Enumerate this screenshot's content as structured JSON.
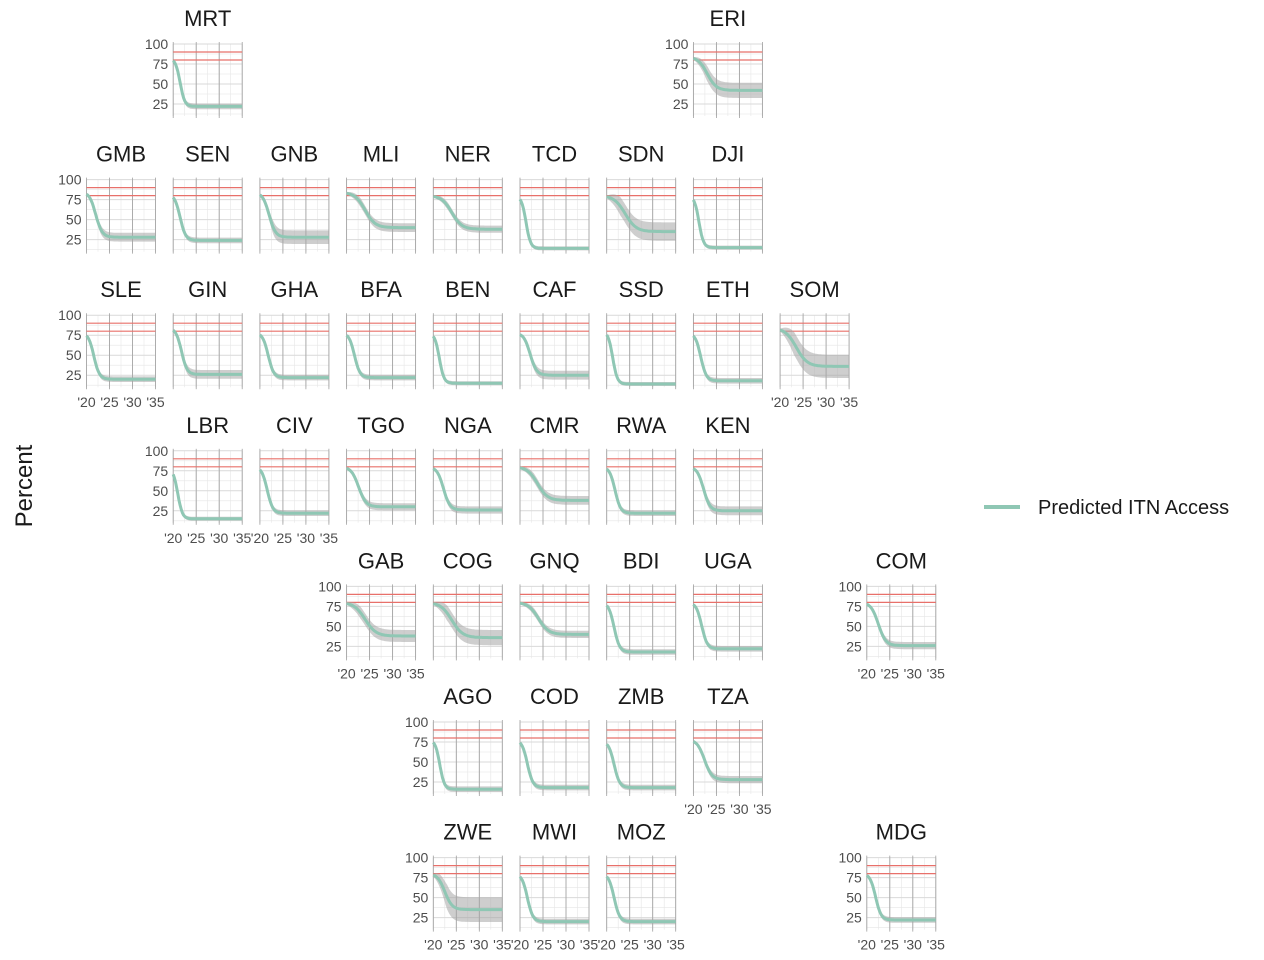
{
  "chart_data": {
    "type": "line",
    "ylabel": "Percent",
    "x_range": [
      2020,
      2035
    ],
    "x_ticks": [
      2020,
      2025,
      2030,
      2035
    ],
    "x_tick_labels": [
      "'20",
      "'25",
      "'30",
      "'35"
    ],
    "y_range": [
      10,
      100
    ],
    "y_ticks": [
      25,
      50,
      75,
      100
    ],
    "y_tick_labels": [
      "25",
      "50",
      "75",
      "100"
    ],
    "reference_lines": [
      80,
      90
    ],
    "grid": true,
    "legend": {
      "position": "right",
      "entries": [
        "Predicted ITN Access"
      ]
    },
    "colors": {
      "line": "#8fc7b4",
      "band": "#a6a6a6",
      "reference": "#e8706a",
      "grid": "#e6e6e6"
    },
    "panels": [
      {
        "id": "MRT",
        "row": 0,
        "col": 1,
        "start": 82,
        "end": 22,
        "mid": 2021.5,
        "width": 0.5,
        "band": 2
      },
      {
        "id": "ERI",
        "row": 0,
        "col": 7,
        "start": 84,
        "end": 42,
        "mid": 2023,
        "width": 1.0,
        "band": 8
      },
      {
        "id": "GMB",
        "row": 1,
        "col": 0,
        "start": 85,
        "end": 28,
        "mid": 2022,
        "width": 0.7,
        "band": 4
      },
      {
        "id": "SEN",
        "row": 1,
        "col": 1,
        "start": 82,
        "end": 24,
        "mid": 2021.5,
        "width": 0.6,
        "band": 2
      },
      {
        "id": "GNB",
        "row": 1,
        "col": 2,
        "start": 84,
        "end": 28,
        "mid": 2022,
        "width": 0.7,
        "band": 7
      },
      {
        "id": "MLI",
        "row": 1,
        "col": 3,
        "start": 84,
        "end": 40,
        "mid": 2024,
        "width": 1.1,
        "band": 4
      },
      {
        "id": "NER",
        "row": 1,
        "col": 4,
        "start": 80,
        "end": 38,
        "mid": 2024,
        "width": 1.1,
        "band": 3
      },
      {
        "id": "TCD",
        "row": 1,
        "col": 5,
        "start": 80,
        "end": 14,
        "mid": 2021.3,
        "width": 0.5,
        "band": 1
      },
      {
        "id": "SDN",
        "row": 1,
        "col": 6,
        "start": 80,
        "end": 35,
        "mid": 2024,
        "width": 1.2,
        "band": 10
      },
      {
        "id": "DJI",
        "row": 1,
        "col": 7,
        "start": 80,
        "end": 15,
        "mid": 2021.2,
        "width": 0.5,
        "band": 1
      },
      {
        "id": "SLE",
        "row": 2,
        "col": 0,
        "start": 78,
        "end": 20,
        "mid": 2021.6,
        "width": 0.6,
        "band": 2
      },
      {
        "id": "GIN",
        "row": 2,
        "col": 1,
        "start": 84,
        "end": 26,
        "mid": 2021.8,
        "width": 0.6,
        "band": 4
      },
      {
        "id": "GHA",
        "row": 2,
        "col": 2,
        "start": 78,
        "end": 22,
        "mid": 2021.8,
        "width": 0.6,
        "band": 2
      },
      {
        "id": "BFA",
        "row": 2,
        "col": 3,
        "start": 78,
        "end": 22,
        "mid": 2021.7,
        "width": 0.6,
        "band": 2
      },
      {
        "id": "BEN",
        "row": 2,
        "col": 4,
        "start": 78,
        "end": 15,
        "mid": 2021.3,
        "width": 0.5,
        "band": 1
      },
      {
        "id": "CAF",
        "row": 2,
        "col": 5,
        "start": 78,
        "end": 25,
        "mid": 2022.2,
        "width": 0.7,
        "band": 4
      },
      {
        "id": "SSD",
        "row": 2,
        "col": 6,
        "start": 80,
        "end": 14,
        "mid": 2021.3,
        "width": 0.5,
        "band": 1
      },
      {
        "id": "ETH",
        "row": 2,
        "col": 7,
        "start": 78,
        "end": 18,
        "mid": 2021.6,
        "width": 0.6,
        "band": 2
      },
      {
        "id": "SOM",
        "row": 2,
        "col": 8,
        "start": 84,
        "end": 36,
        "mid": 2023.5,
        "width": 1.2,
        "band": 13
      },
      {
        "id": "LBR",
        "row": 3,
        "col": 1,
        "start": 78,
        "end": 15,
        "mid": 2021,
        "width": 0.5,
        "band": 1
      },
      {
        "id": "CIV",
        "row": 3,
        "col": 2,
        "start": 80,
        "end": 22,
        "mid": 2021.6,
        "width": 0.6,
        "band": 2
      },
      {
        "id": "TGO",
        "row": 3,
        "col": 3,
        "start": 80,
        "end": 30,
        "mid": 2022.6,
        "width": 0.8,
        "band": 3
      },
      {
        "id": "NGA",
        "row": 3,
        "col": 4,
        "start": 80,
        "end": 26,
        "mid": 2022.2,
        "width": 0.7,
        "band": 3
      },
      {
        "id": "CMR",
        "row": 3,
        "col": 5,
        "start": 80,
        "end": 38,
        "mid": 2023.8,
        "width": 1.1,
        "band": 4
      },
      {
        "id": "RWA",
        "row": 3,
        "col": 6,
        "start": 80,
        "end": 22,
        "mid": 2021.8,
        "width": 0.6,
        "band": 2
      },
      {
        "id": "KEN",
        "row": 3,
        "col": 7,
        "start": 80,
        "end": 25,
        "mid": 2022.2,
        "width": 0.7,
        "band": 4
      },
      {
        "id": "GAB",
        "row": 4,
        "col": 3,
        "start": 80,
        "end": 38,
        "mid": 2024,
        "width": 1.2,
        "band": 6
      },
      {
        "id": "COG",
        "row": 4,
        "col": 4,
        "start": 80,
        "end": 36,
        "mid": 2024,
        "width": 1.2,
        "band": 8
      },
      {
        "id": "GNQ",
        "row": 4,
        "col": 5,
        "start": 80,
        "end": 40,
        "mid": 2024,
        "width": 1.1,
        "band": 3
      },
      {
        "id": "BDI",
        "row": 4,
        "col": 6,
        "start": 80,
        "end": 18,
        "mid": 2021.6,
        "width": 0.6,
        "band": 2
      },
      {
        "id": "UGA",
        "row": 4,
        "col": 7,
        "start": 80,
        "end": 22,
        "mid": 2021.8,
        "width": 0.6,
        "band": 2
      },
      {
        "id": "COM",
        "row": 4,
        "col": 9,
        "start": 80,
        "end": 26,
        "mid": 2022.5,
        "width": 0.8,
        "band": 3
      },
      {
        "id": "AGO",
        "row": 5,
        "col": 4,
        "start": 78,
        "end": 16,
        "mid": 2021.4,
        "width": 0.5,
        "band": 2
      },
      {
        "id": "COD",
        "row": 5,
        "col": 5,
        "start": 78,
        "end": 18,
        "mid": 2021.6,
        "width": 0.6,
        "band": 2
      },
      {
        "id": "ZMB",
        "row": 5,
        "col": 6,
        "start": 76,
        "end": 18,
        "mid": 2021.6,
        "width": 0.6,
        "band": 2
      },
      {
        "id": "TZA",
        "row": 5,
        "col": 7,
        "start": 78,
        "end": 28,
        "mid": 2022.4,
        "width": 0.8,
        "band": 3
      },
      {
        "id": "ZWE",
        "row": 6,
        "col": 4,
        "start": 80,
        "end": 35,
        "mid": 2022.5,
        "width": 0.8,
        "band": 14
      },
      {
        "id": "MWI",
        "row": 6,
        "col": 5,
        "start": 80,
        "end": 20,
        "mid": 2021.6,
        "width": 0.6,
        "band": 2
      },
      {
        "id": "MOZ",
        "row": 6,
        "col": 6,
        "start": 80,
        "end": 20,
        "mid": 2021.6,
        "width": 0.6,
        "band": 2
      },
      {
        "id": "MDG",
        "row": 6,
        "col": 9,
        "start": 80,
        "end": 22,
        "mid": 2021.9,
        "width": 0.6,
        "band": 2
      }
    ]
  }
}
